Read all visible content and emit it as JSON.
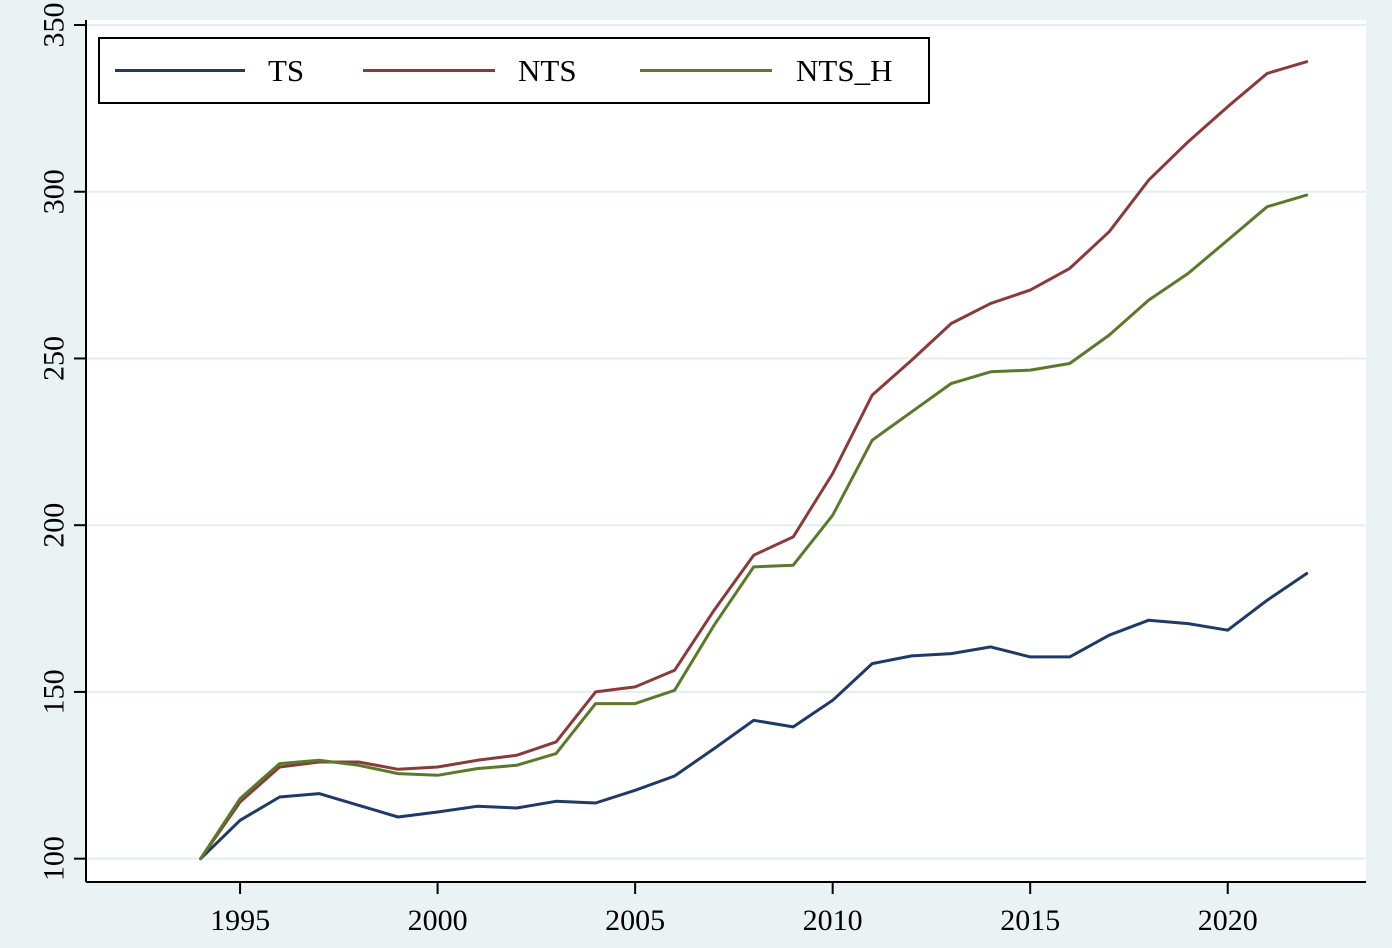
{
  "chart_data": {
    "type": "line",
    "title": "",
    "xlabel": "",
    "ylabel": "",
    "x": [
      1994,
      1995,
      1996,
      1997,
      1998,
      1999,
      2000,
      2001,
      2002,
      2003,
      2004,
      2005,
      2006,
      2007,
      2008,
      2009,
      2010,
      2011,
      2012,
      2013,
      2014,
      2015,
      2016,
      2017,
      2018,
      2019,
      2020,
      2021,
      2022
    ],
    "xlim": [
      1991.1,
      2023.5
    ],
    "ylim": [
      93,
      351.5
    ],
    "xticks": [
      1995,
      2000,
      2005,
      2010,
      2015,
      2020
    ],
    "yticks": [
      100,
      150,
      200,
      250,
      300,
      350
    ],
    "xtick_labels": [
      "1995",
      "2000",
      "2005",
      "2010",
      "2015",
      "2020"
    ],
    "ytick_labels": [
      "100",
      "150",
      "200",
      "250",
      "300",
      "350"
    ],
    "grid": true,
    "legend_position": "top-left",
    "background_color": "#eaf2f3",
    "plot_background_color": "#ffffff",
    "gridline_color": "#e3eeee",
    "series": [
      {
        "name": "TS",
        "color": "#1f3a68",
        "values": [
          100,
          111.5,
          118.5,
          119.5,
          116,
          112.5,
          114,
          115.7,
          115.2,
          117.2,
          116.7,
          120.5,
          124.8,
          133,
          141.5,
          139.5,
          147.5,
          158.5,
          160.8,
          161.5,
          163.5,
          160.5,
          160.5,
          167,
          171.5,
          170.5,
          168.5,
          177.5,
          185.5
        ]
      },
      {
        "name": "NTS",
        "color": "#8b3a3a",
        "values": [
          100,
          117,
          127.5,
          129,
          129,
          126.8,
          127.5,
          129.5,
          131,
          135,
          150,
          151.5,
          156.5,
          174.5,
          191,
          196.5,
          215.5,
          239,
          249.5,
          260.5,
          266.5,
          270.5,
          277,
          288,
          303.5,
          315,
          325.5,
          335.5,
          339
        ]
      },
      {
        "name": "NTS_H",
        "color": "#5a7a2a",
        "values": [
          100,
          118,
          128.5,
          129.5,
          128,
          125.5,
          125,
          127,
          128,
          131.5,
          146.5,
          146.5,
          150.5,
          170,
          187.5,
          188,
          203,
          225.5,
          234,
          242.5,
          246,
          246.5,
          248.5,
          257,
          267.5,
          275.5,
          285.5,
          295.5,
          299
        ]
      }
    ]
  }
}
